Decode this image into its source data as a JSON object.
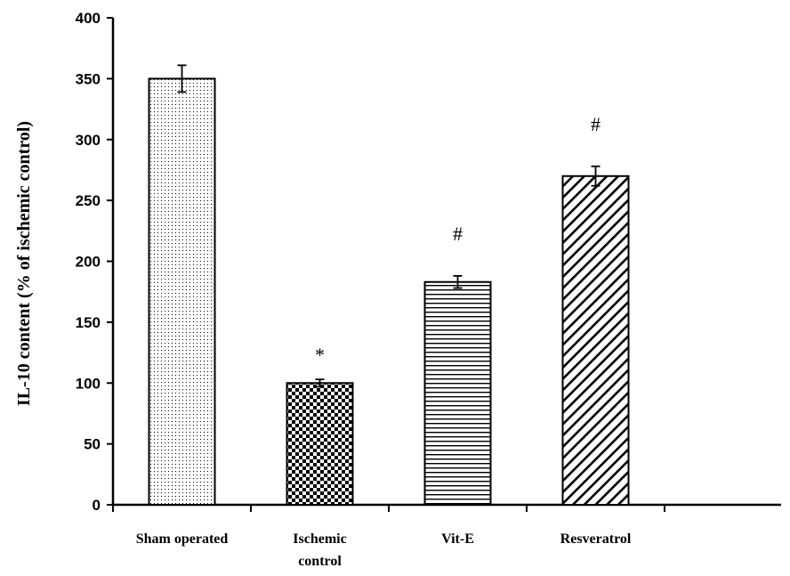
{
  "chart_data": {
    "type": "bar",
    "title": "",
    "xlabel": "",
    "ylabel": "IL-10  content (% of ischemic control)",
    "ylim": [
      0,
      400
    ],
    "yticks": [
      0,
      50,
      100,
      150,
      200,
      250,
      300,
      350,
      400
    ],
    "categories": [
      {
        "line1": "Sham operated",
        "line2": ""
      },
      {
        "line1": "Ischemic",
        "line2": "control"
      },
      {
        "line1": "Vit-E",
        "line2": ""
      },
      {
        "line1": "Resveratrol",
        "line2": ""
      }
    ],
    "values": [
      350,
      100,
      183,
      270
    ],
    "errors": [
      11,
      3,
      5,
      8
    ],
    "patterns": [
      "dots",
      "checker",
      "horizontal-lines",
      "diagonal-lines"
    ],
    "annotations": [
      "",
      "*",
      "#",
      "#"
    ],
    "grid": false,
    "legend": "none",
    "colors": {
      "bar_stroke": "#000000",
      "fill": "#000000",
      "background": "#ffffff"
    }
  }
}
